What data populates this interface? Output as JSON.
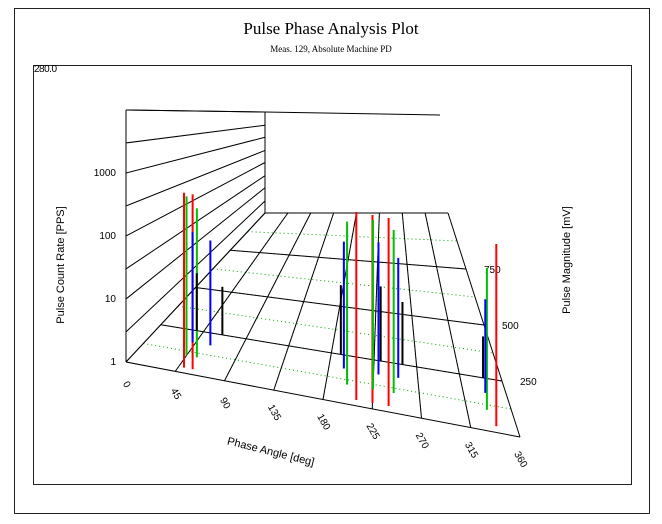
{
  "chart_data": {
    "type": "3d-bar",
    "title": "Pulse Phase Analysis Plot",
    "subtitle": "Meas. 129, Absolute Machine PD",
    "zmax_label": "280.0",
    "ylabel": "Pulse Count Rate [PPS]",
    "y_scale": "log",
    "y_ticks": [
      "1",
      "10",
      "100",
      "1000"
    ],
    "y_tick_values": [
      1,
      10,
      100,
      1000
    ],
    "xlabel": "Phase Angle [deg]",
    "x_ticks": [
      "0",
      "45",
      "90",
      "135",
      "180",
      "225",
      "270",
      "315",
      "360"
    ],
    "x_range": [
      0,
      360
    ],
    "zlabel": "Pulse Magnitude [mV]",
    "z_ticks": [
      "250",
      "500",
      "750"
    ],
    "z_range": [
      0,
      1000
    ],
    "grid": true,
    "series": [
      {
        "name": "",
        "color": "#ff0000",
        "points": [
          [
            50,
            30,
            900
          ],
          [
            58,
            30,
            900
          ],
          [
            210,
            30,
            1500
          ],
          [
            225,
            30,
            1500
          ],
          [
            240,
            30,
            1500
          ],
          [
            340,
            30,
            1200
          ]
        ]
      },
      {
        "name": "",
        "color": "#00c000",
        "points": [
          [
            45,
            100,
            600
          ],
          [
            55,
            100,
            400
          ],
          [
            200,
            100,
            700
          ],
          [
            225,
            100,
            900
          ],
          [
            245,
            100,
            700
          ],
          [
            335,
            100,
            300
          ]
        ]
      },
      {
        "name": "",
        "color": "#0000ff",
        "points": [
          [
            42,
            180,
            100
          ],
          [
            60,
            180,
            80
          ],
          [
            195,
            180,
            200
          ],
          [
            230,
            180,
            250
          ],
          [
            250,
            180,
            150
          ],
          [
            338,
            180,
            50
          ]
        ]
      },
      {
        "name": "",
        "color": "#000000",
        "points": [
          [
            38,
            250,
            12
          ],
          [
            65,
            250,
            8
          ],
          [
            190,
            250,
            20
          ],
          [
            232,
            250,
            25
          ],
          [
            255,
            250,
            15
          ],
          [
            340,
            250,
            6
          ]
        ]
      }
    ]
  }
}
